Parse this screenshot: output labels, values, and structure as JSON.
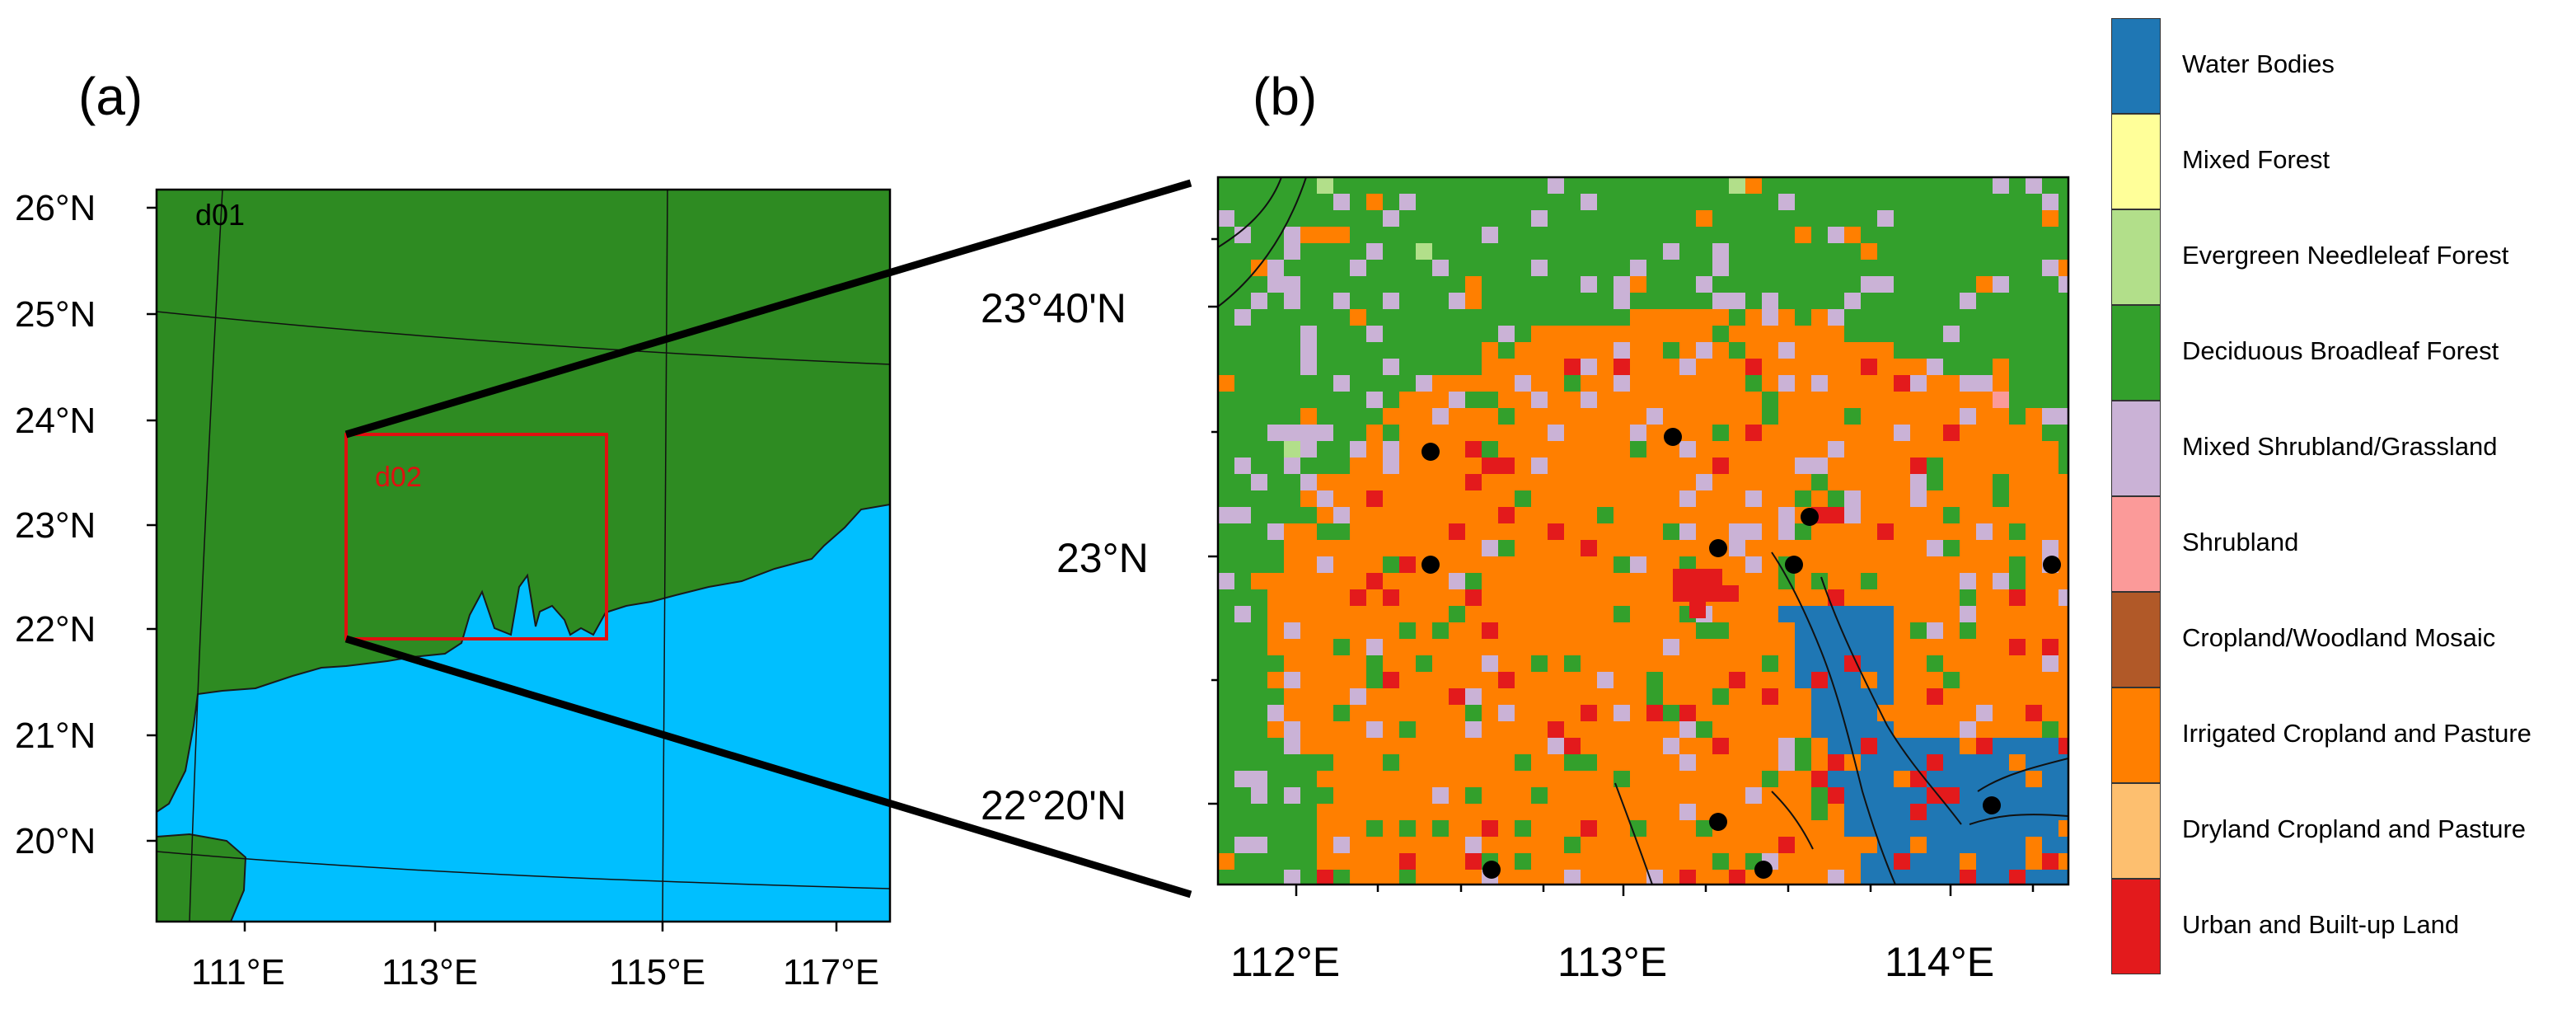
{
  "panel_a": {
    "label": "(a)",
    "domain_labels": {
      "outer": "d01",
      "inner": "d02"
    },
    "lat_labels": [
      "26°N",
      "25°N",
      "24°N",
      "23°N",
      "22°N",
      "21°N",
      "20°N"
    ],
    "lon_labels": [
      "111°E",
      "113°E",
      "115°E",
      "117°E"
    ],
    "colors": {
      "land": "#2e8b22",
      "ocean": "#00bfff",
      "inner_box": "#e01010"
    }
  },
  "panel_b": {
    "label": "(b)",
    "lat_labels": [
      "23°40'N",
      "23°N",
      "22°20'N"
    ],
    "lon_labels": [
      "112°E",
      "113°E",
      "114°E"
    ]
  },
  "legend": [
    {
      "label": "Water Bodies",
      "color": "#1f77b4"
    },
    {
      "label": "Mixed Forest",
      "color": "#ffff99"
    },
    {
      "label": "Evergreen Needleleaf Forest",
      "color": "#b2df8a"
    },
    {
      "label": "Deciduous Broadleaf Forest",
      "color": "#33a02c"
    },
    {
      "label": "Mixed Shrubland/Grassland",
      "color": "#cab2d6"
    },
    {
      "label": "Shrubland",
      "color": "#fb9a99"
    },
    {
      "label": "Cropland/Woodland Mosaic",
      "color": "#b15928"
    },
    {
      "label": "Irrigated Cropland and Pasture",
      "color": "#ff7f00"
    },
    {
      "label": "Dryland Cropland and Pasture",
      "color": "#fdbf6f"
    },
    {
      "label": "Urban and Built-up Land",
      "color": "#e31a1c"
    }
  ]
}
